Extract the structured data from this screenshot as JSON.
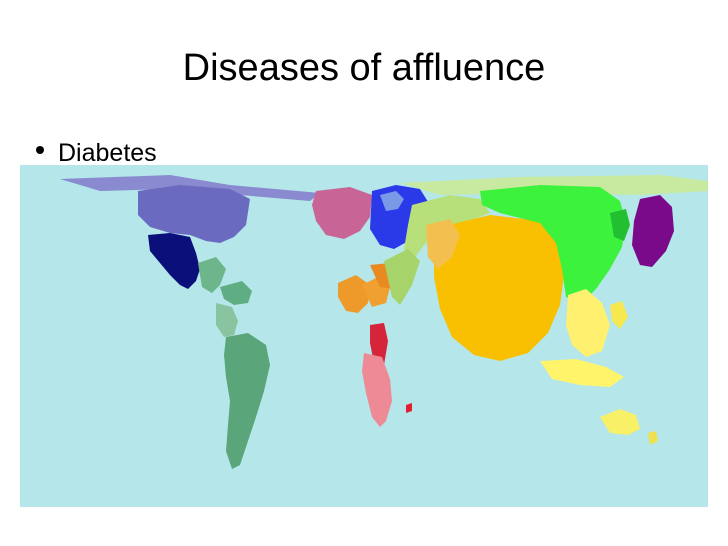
{
  "slide": {
    "title": "Diseases of affluence",
    "bullets": [
      "Diabetes"
    ]
  },
  "map": {
    "ocean_color": "#b4e6ea",
    "region_colors": {
      "north_america": "#6a6bc0",
      "mexico": "#0b0f7a",
      "central_america_caribbean": "#6db58a",
      "south_america": "#5aa57a",
      "western_europe": "#c86496",
      "eastern_europe": "#2a3ae8",
      "north_africa_middle_east": "#ee9a2a",
      "east_africa": "#d6253a",
      "southern_africa": "#ee8a96",
      "central_asia": "#b8e07a",
      "south_asia": "#f8c000",
      "east_asia": "#3df23d",
      "japan": "#7a0a8a",
      "southeast_asia": "#fff070",
      "oceania": "#f8f066"
    }
  }
}
